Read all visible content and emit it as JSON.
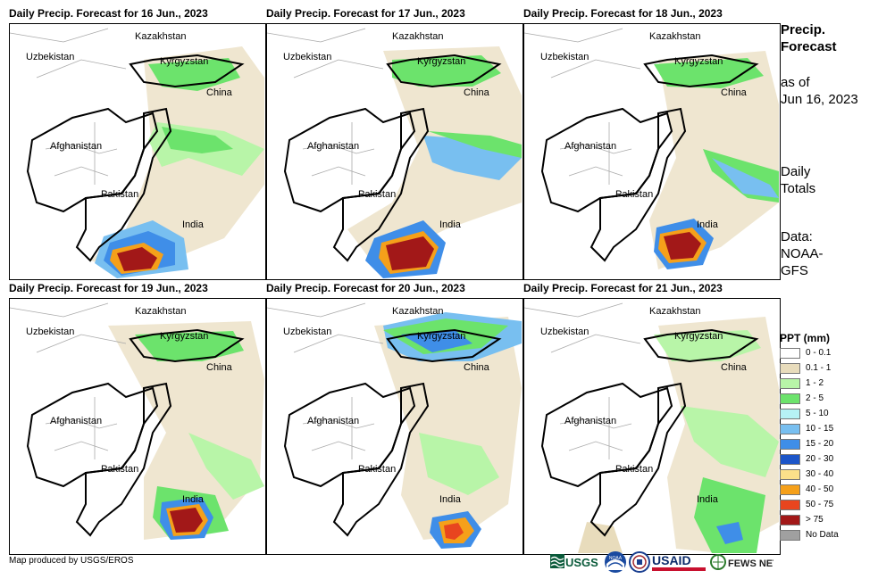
{
  "panels": [
    {
      "title": "Daily Precip. Forecast for 16 Jun., 2023"
    },
    {
      "title": "Daily Precip. Forecast for 17 Jun., 2023"
    },
    {
      "title": "Daily Precip. Forecast for 18 Jun., 2023"
    },
    {
      "title": "Daily Precip. Forecast for 19 Jun., 2023"
    },
    {
      "title": "Daily Precip. Forecast for 20 Jun., 2023"
    },
    {
      "title": "Daily Precip. Forecast for 21 Jun., 2023"
    }
  ],
  "map_labels": {
    "kazakhstan": "Kazakhstan",
    "uzbekistan": "Uzbekistan",
    "kyrgyzstan": "Kyrgyzstan",
    "china": "China",
    "afghanistan": "Afghanistan",
    "pakistan": "Pakistan",
    "india": "India"
  },
  "sidebar": {
    "title_line1": "Precip.",
    "title_line2": "Forecast",
    "asof_line1": "as of",
    "asof_line2": "Jun 16, 2023",
    "daily_line1": "Daily",
    "daily_line2": "Totals",
    "data_line1": "Data:",
    "data_line2": "NOAA-",
    "data_line3": "GFS"
  },
  "legend": {
    "title": "PPT (mm)",
    "items": [
      {
        "label": "0 - 0.1",
        "color": "#ffffff"
      },
      {
        "label": "0.1 - 1",
        "color": "#e8dcbc"
      },
      {
        "label": "1 - 2",
        "color": "#b8f5a8"
      },
      {
        "label": "2 - 5",
        "color": "#6ce36c"
      },
      {
        "label": "5 - 10",
        "color": "#b6f2f5"
      },
      {
        "label": "10 - 15",
        "color": "#78bff0"
      },
      {
        "label": "15 - 20",
        "color": "#3f8ee8"
      },
      {
        "label": "20 - 30",
        "color": "#1c55c8"
      },
      {
        "label": "30 - 40",
        "color": "#fbe08a"
      },
      {
        "label": "40 - 50",
        "color": "#f5a01a"
      },
      {
        "label": "50 - 75",
        "color": "#e8451f"
      },
      {
        "label": "> 75",
        "color": "#a21818"
      },
      {
        "label": "No Data",
        "color": "#a0a0a0"
      }
    ]
  },
  "footer": {
    "credit": "Map produced by USGS/EROS",
    "logos": {
      "usgs": "USGS",
      "noaa": "NOAA",
      "usaid": "USAID",
      "fews": "FEWS NET"
    }
  }
}
